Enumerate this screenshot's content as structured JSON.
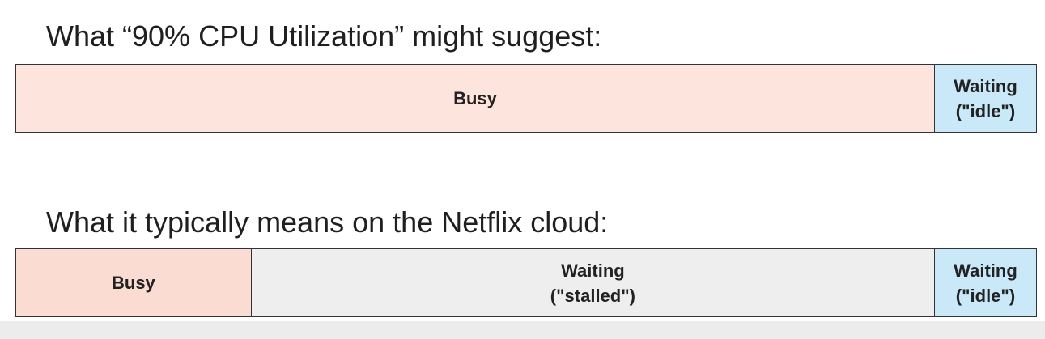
{
  "scenario_1": {
    "heading": "What “90% CPU Utilization” might suggest:",
    "segments": [
      {
        "label": "Busy",
        "share": 0.9
      },
      {
        "label": "Waiting\n(\"idle\")",
        "share": 0.1
      }
    ]
  },
  "scenario_2": {
    "heading": "What it typically means on the Netflix cloud:",
    "segments": [
      {
        "label": "Busy",
        "share": 0.23
      },
      {
        "label": "Waiting\n(\"stalled\")",
        "share": 0.67
      },
      {
        "label": "Waiting\n(\"idle\")",
        "share": 0.1
      }
    ]
  },
  "colors": {
    "busy": "#fbdcd2",
    "stalled": "#eeeeee",
    "idle": "#c9e8f8",
    "border": "#333333"
  }
}
